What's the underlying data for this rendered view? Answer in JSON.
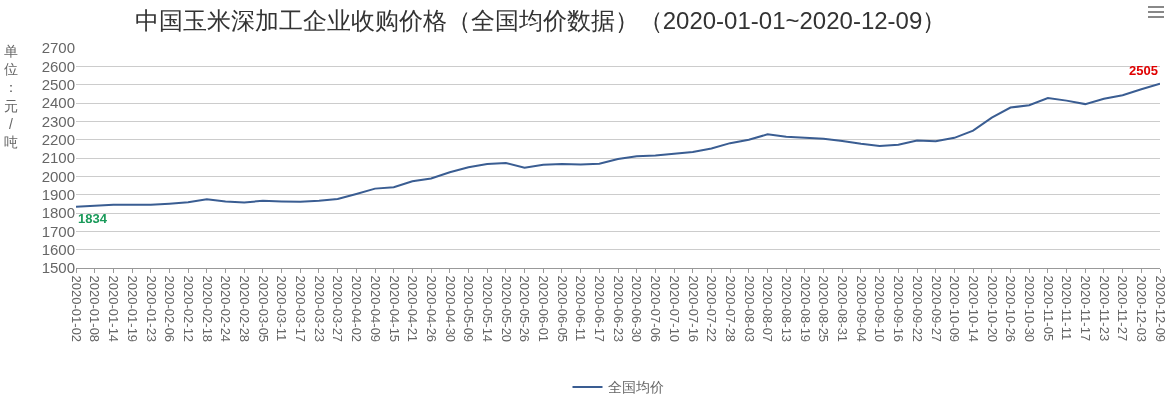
{
  "chart_data": {
    "type": "line",
    "title": "中国玉米深加工企业收购价格（全国均价数据）（2020-01-01~2020-12-09）",
    "ylabel": "单位：元/吨",
    "categories": [
      "2020-01-02",
      "2020-01-08",
      "2020-01-14",
      "2020-01-19",
      "2020-01-23",
      "2020-02-06",
      "2020-02-12",
      "2020-02-18",
      "2020-02-24",
      "2020-02-28",
      "2020-03-05",
      "2020-03-11",
      "2020-03-17",
      "2020-03-23",
      "2020-03-27",
      "2020-04-02",
      "2020-04-09",
      "2020-04-15",
      "2020-04-21",
      "2020-04-26",
      "2020-04-30",
      "2020-05-09",
      "2020-05-14",
      "2020-05-20",
      "2020-05-26",
      "2020-06-01",
      "2020-06-05",
      "2020-06-11",
      "2020-06-17",
      "2020-06-23",
      "2020-06-30",
      "2020-07-06",
      "2020-07-10",
      "2020-07-16",
      "2020-07-22",
      "2020-07-28",
      "2020-08-03",
      "2020-08-07",
      "2020-08-13",
      "2020-08-19",
      "2020-08-25",
      "2020-08-31",
      "2020-09-04",
      "2020-09-10",
      "2020-09-16",
      "2020-09-22",
      "2020-09-27",
      "2020-10-09",
      "2020-10-14",
      "2020-10-20",
      "2020-10-26",
      "2020-10-30",
      "2020-11-05",
      "2020-11-11",
      "2020-11-17",
      "2020-11-23",
      "2020-11-27",
      "2020-12-03",
      "2020-12-09"
    ],
    "series": [
      {
        "name": "全国均价",
        "color": "#3a5d92",
        "values": [
          1834,
          1839,
          1845,
          1845,
          1845,
          1851,
          1859,
          1875,
          1863,
          1857,
          1867,
          1863,
          1861,
          1867,
          1876,
          1904,
          1933,
          1941,
          1973,
          1988,
          2022,
          2049,
          2067,
          2073,
          2047,
          2063,
          2067,
          2065,
          2069,
          2094,
          2110,
          2114,
          2123,
          2133,
          2152,
          2181,
          2200,
          2229,
          2216,
          2210,
          2205,
          2193,
          2178,
          2166,
          2172,
          2195,
          2191,
          2210,
          2249,
          2320,
          2375,
          2388,
          2427,
          2413,
          2394,
          2423,
          2442,
          2475,
          2505
        ]
      }
    ],
    "ylim": [
      1500,
      2700
    ],
    "yticks": [
      1500,
      1600,
      1700,
      1800,
      1900,
      2000,
      2100,
      2200,
      2300,
      2400,
      2500,
      2600,
      2700
    ],
    "annotations": [
      {
        "text": "1834",
        "x": "2020-01-02",
        "y": 1834
      },
      {
        "text": "2505",
        "x": "2020-12-09",
        "y": 2505
      }
    ],
    "grid": "y",
    "legend": "bottom",
    "marker": "none",
    "line_style": "solid"
  }
}
